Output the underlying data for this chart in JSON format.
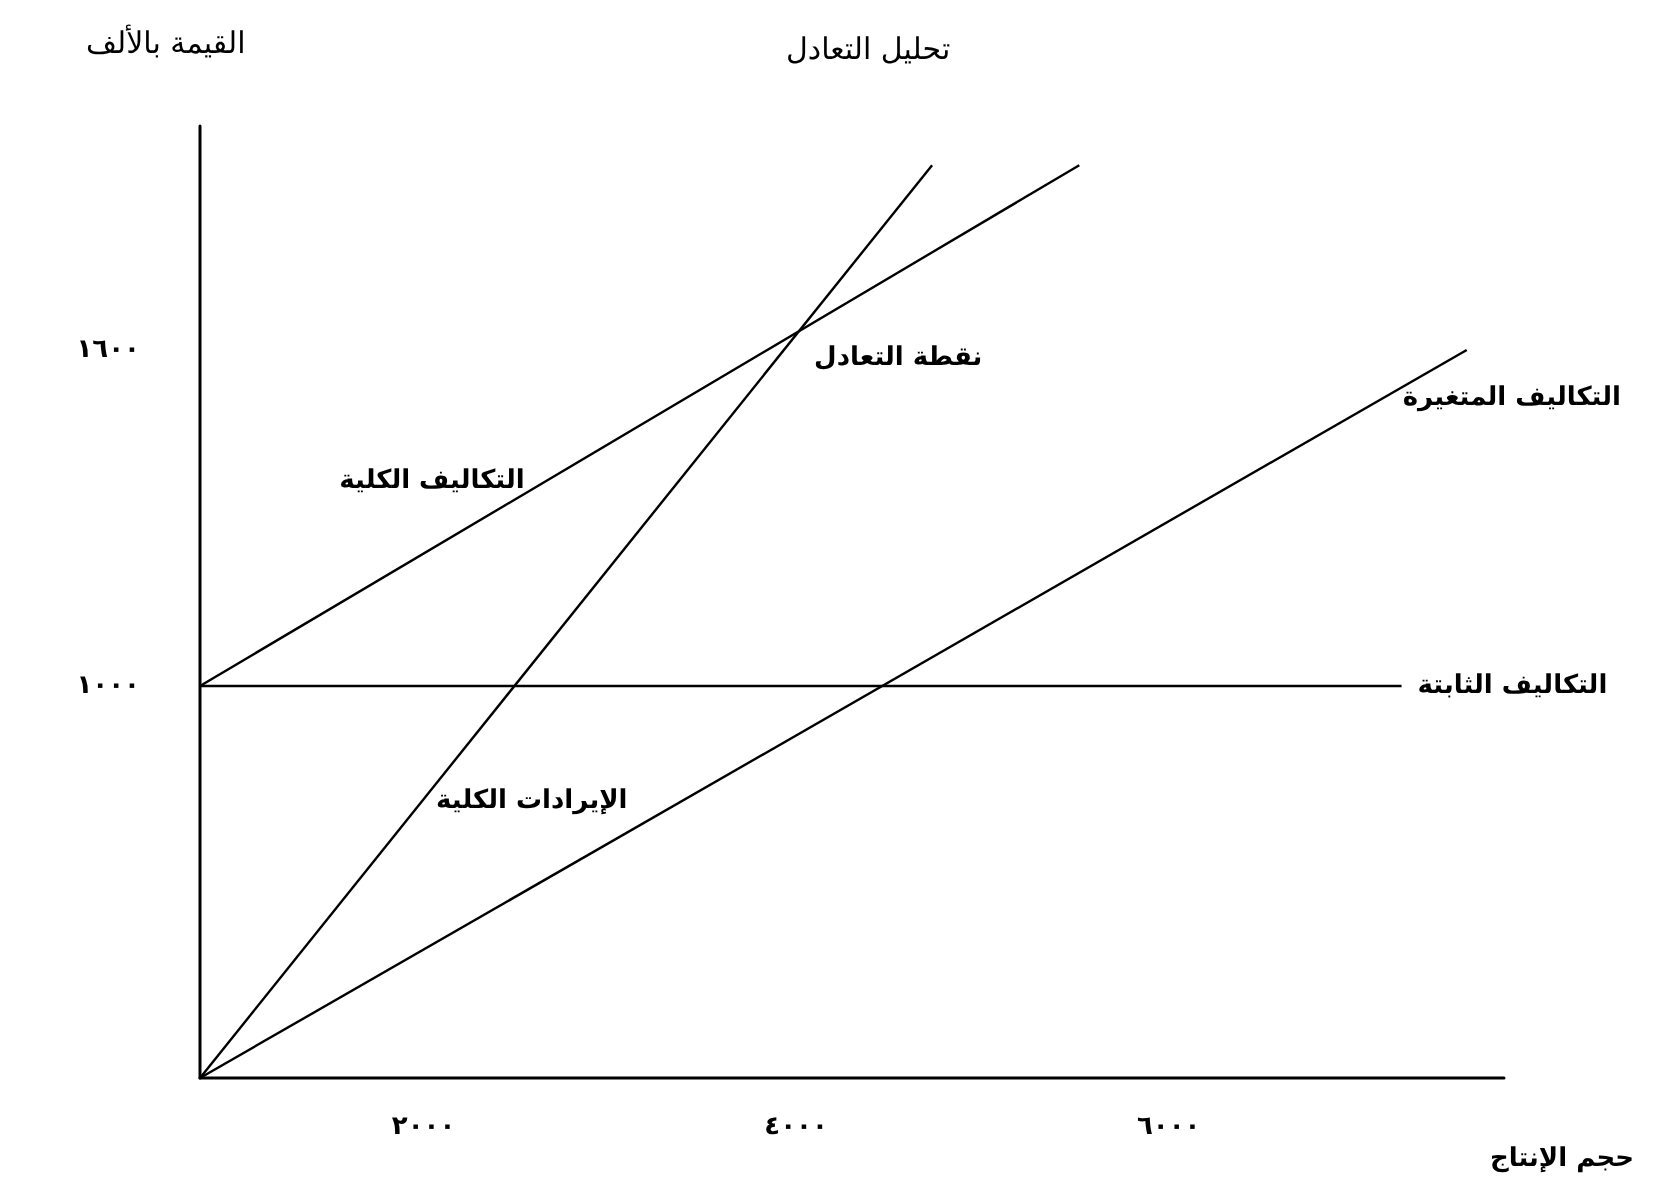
{
  "chart_data": {
    "type": "line",
    "title": "تحليل التعادل",
    "xlabel": "حجم الإنتاج",
    "ylabel": "القيمة بالألف",
    "xlim": [
      800,
      7800
    ],
    "ylim": [
      300,
      2000
    ],
    "xticks": [
      {
        "value": 2000,
        "label": "٢٠٠٠"
      },
      {
        "value": 4000,
        "label": "٤٠٠٠"
      },
      {
        "value": 6000,
        "label": "٦٠٠٠"
      }
    ],
    "yticks": [
      {
        "value": 1000,
        "label": "١٠٠٠"
      },
      {
        "value": 1600,
        "label": "١٦٠٠"
      }
    ],
    "series": [
      {
        "name": "التكاليف الثابتة",
        "color": "#000000",
        "x": [
          800,
          7250
        ],
        "values": [
          1000,
          1000
        ]
      },
      {
        "name": "التكاليف الكلية",
        "color": "#000000",
        "x": [
          800,
          5520
        ],
        "values": [
          1000,
          1930
        ]
      },
      {
        "name": "الإيرادات الكلية",
        "color": "#000000",
        "x": [
          800,
          4730
        ],
        "values": [
          300,
          1930
        ]
      },
      {
        "name": "التكاليف المتغيرة",
        "color": "#000000",
        "x": [
          800,
          7600
        ],
        "values": [
          300,
          1600
        ]
      }
    ],
    "annotations": [
      {
        "text": "نقطة التعادل",
        "x": 4000,
        "y": 1600
      }
    ],
    "grid": false,
    "legend": false,
    "marker": "none",
    "line_style": "solid"
  }
}
